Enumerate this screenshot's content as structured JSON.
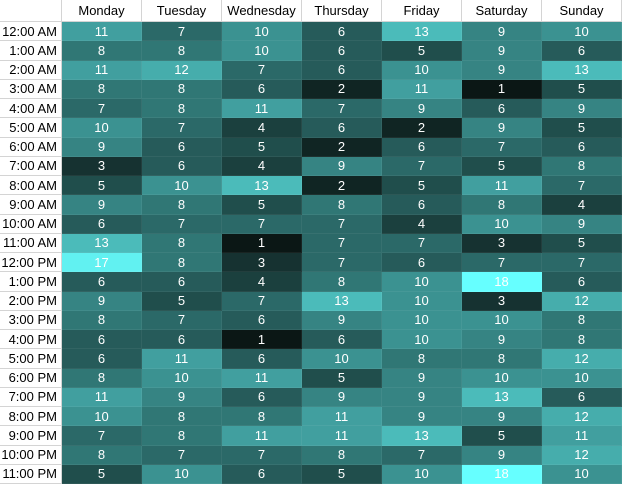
{
  "chart_data": {
    "type": "heatmap",
    "columns": [
      "Monday",
      "Tuesday",
      "Wednesday",
      "Thursday",
      "Friday",
      "Saturday",
      "Sunday"
    ],
    "rows": [
      "12:00 AM",
      "1:00 AM",
      "2:00 AM",
      "3:00 AM",
      "4:00 AM",
      "5:00 AM",
      "6:00 AM",
      "7:00 AM",
      "8:00 AM",
      "9:00 AM",
      "10:00 AM",
      "11:00 AM",
      "12:00 PM",
      "1:00 PM",
      "2:00 PM",
      "3:00 PM",
      "4:00 PM",
      "5:00 PM",
      "6:00 PM",
      "7:00 PM",
      "8:00 PM",
      "9:00 PM",
      "10:00 PM",
      "11:00 PM"
    ],
    "values": [
      [
        11,
        7,
        10,
        6,
        13,
        9,
        10
      ],
      [
        8,
        8,
        10,
        6,
        5,
        9,
        6
      ],
      [
        11,
        12,
        7,
        6,
        10,
        9,
        13
      ],
      [
        8,
        8,
        6,
        2,
        11,
        1,
        5
      ],
      [
        7,
        8,
        11,
        7,
        9,
        6,
        9
      ],
      [
        10,
        7,
        4,
        6,
        2,
        9,
        5
      ],
      [
        9,
        6,
        5,
        2,
        6,
        7,
        6
      ],
      [
        3,
        6,
        4,
        9,
        7,
        5,
        8
      ],
      [
        5,
        10,
        13,
        2,
        5,
        11,
        7
      ],
      [
        9,
        8,
        5,
        8,
        6,
        8,
        4
      ],
      [
        6,
        7,
        7,
        7,
        4,
        10,
        9
      ],
      [
        13,
        8,
        1,
        7,
        7,
        3,
        5
      ],
      [
        17,
        8,
        3,
        7,
        6,
        7,
        7
      ],
      [
        6,
        6,
        4,
        8,
        10,
        18,
        6
      ],
      [
        9,
        5,
        7,
        13,
        10,
        3,
        12
      ],
      [
        8,
        7,
        6,
        9,
        10,
        10,
        8
      ],
      [
        6,
        6,
        1,
        6,
        10,
        9,
        8
      ],
      [
        6,
        11,
        6,
        10,
        8,
        8,
        12
      ],
      [
        8,
        10,
        11,
        5,
        9,
        10,
        10
      ],
      [
        11,
        9,
        6,
        9,
        9,
        13,
        6
      ],
      [
        10,
        8,
        8,
        11,
        9,
        9,
        12
      ],
      [
        7,
        8,
        11,
        11,
        13,
        5,
        11
      ],
      [
        8,
        7,
        7,
        8,
        7,
        9,
        12
      ],
      [
        5,
        10,
        6,
        5,
        10,
        18,
        10
      ]
    ],
    "color_scale": {
      "low": "#0b1715",
      "high": "#66ffff"
    }
  }
}
